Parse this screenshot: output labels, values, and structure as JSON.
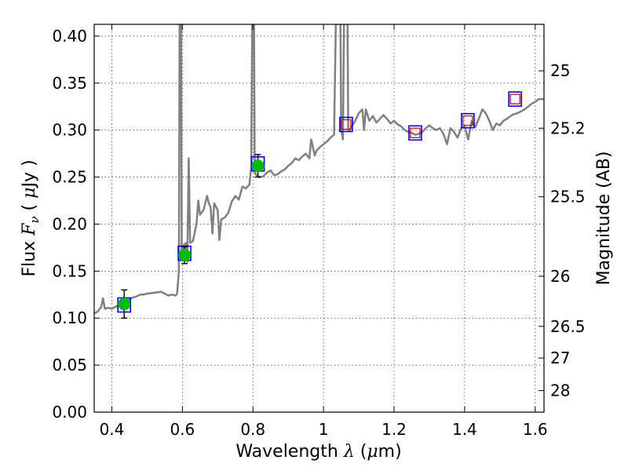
{
  "chart_data": {
    "type": "line",
    "xlabel": "Wavelength  λ (μm)",
    "ylabel_left": "Flux  F_ν  ( μJy )",
    "ylabel_left_parts": {
      "pre": "Flux  ",
      "sym": "F",
      "sub": "ν",
      "mid": "  ( ",
      "mu": "μ",
      "post": "Jy )"
    },
    "xlabel_parts": {
      "pre": "Wavelength  ",
      "sym": "λ",
      "mid": " (",
      "mu": "μ",
      "post": "m)"
    },
    "ylabel_right": "Magnitude (AB)",
    "xlim": [
      0.35,
      1.625
    ],
    "ylim": [
      0.0,
      0.4125
    ],
    "x_ticks": [
      0.4,
      0.6,
      0.8,
      1.0,
      1.2,
      1.4,
      1.6
    ],
    "x_tick_labels": [
      "0.4",
      "0.6",
      "0.8",
      "1",
      "1.2",
      "1.4",
      "1.6"
    ],
    "y_ticks": [
      0.0,
      0.05,
      0.1,
      0.15,
      0.2,
      0.25,
      0.3,
      0.35,
      0.4
    ],
    "y_tick_labels": [
      "0.00",
      "0.05",
      "0.10",
      "0.15",
      "0.20",
      "0.25",
      "0.30",
      "0.35",
      "0.40"
    ],
    "right_ticks": [
      {
        "mag": 25,
        "label": "25"
      },
      {
        "mag": 25.2,
        "label": "25.2"
      },
      {
        "mag": 25.5,
        "label": "25.5"
      },
      {
        "mag": 26,
        "label": "26"
      },
      {
        "mag": 26.5,
        "label": "26.5"
      },
      {
        "mag": 27,
        "label": "27"
      },
      {
        "mag": 28,
        "label": "28"
      }
    ],
    "grid": true,
    "colors": {
      "spectrum": "#808080",
      "observed_fill": "#00bb00",
      "model_box": "#0000ff",
      "model_fill_red": "#cc0000",
      "errorbar": "#000000"
    },
    "spectrum": [
      [
        0.35,
        0.105
      ],
      [
        0.36,
        0.107
      ],
      [
        0.37,
        0.112
      ],
      [
        0.375,
        0.121
      ],
      [
        0.38,
        0.11
      ],
      [
        0.39,
        0.111
      ],
      [
        0.4,
        0.11
      ],
      [
        0.41,
        0.112
      ],
      [
        0.42,
        0.114
      ],
      [
        0.43,
        0.116
      ],
      [
        0.44,
        0.118
      ],
      [
        0.45,
        0.12
      ],
      [
        0.46,
        0.122
      ],
      [
        0.47,
        0.123
      ],
      [
        0.48,
        0.125
      ],
      [
        0.49,
        0.125
      ],
      [
        0.5,
        0.126
      ],
      [
        0.52,
        0.127
      ],
      [
        0.54,
        0.128
      ],
      [
        0.55,
        0.126
      ],
      [
        0.56,
        0.124
      ],
      [
        0.57,
        0.125
      ],
      [
        0.58,
        0.124
      ],
      [
        0.585,
        0.126
      ],
      [
        0.59,
        0.15
      ],
      [
        0.592,
        0.413
      ],
      [
        0.596,
        0.413
      ],
      [
        0.598,
        0.165
      ],
      [
        0.6,
        0.172
      ],
      [
        0.605,
        0.178
      ],
      [
        0.61,
        0.18
      ],
      [
        0.614,
        0.16
      ],
      [
        0.618,
        0.27
      ],
      [
        0.622,
        0.18
      ],
      [
        0.63,
        0.182
      ],
      [
        0.64,
        0.2
      ],
      [
        0.645,
        0.225
      ],
      [
        0.65,
        0.21
      ],
      [
        0.66,
        0.215
      ],
      [
        0.67,
        0.23
      ],
      [
        0.675,
        0.222
      ],
      [
        0.68,
        0.218
      ],
      [
        0.685,
        0.19
      ],
      [
        0.69,
        0.222
      ],
      [
        0.7,
        0.215
      ],
      [
        0.705,
        0.183
      ],
      [
        0.71,
        0.205
      ],
      [
        0.72,
        0.207
      ],
      [
        0.73,
        0.212
      ],
      [
        0.74,
        0.224
      ],
      [
        0.75,
        0.23
      ],
      [
        0.76,
        0.226
      ],
      [
        0.77,
        0.24
      ],
      [
        0.78,
        0.238
      ],
      [
        0.79,
        0.242
      ],
      [
        0.795,
        0.26
      ],
      [
        0.798,
        0.413
      ],
      [
        0.803,
        0.413
      ],
      [
        0.805,
        0.255
      ],
      [
        0.81,
        0.252
      ],
      [
        0.82,
        0.25
      ],
      [
        0.83,
        0.251
      ],
      [
        0.84,
        0.255
      ],
      [
        0.85,
        0.257
      ],
      [
        0.86,
        0.252
      ],
      [
        0.87,
        0.253
      ],
      [
        0.88,
        0.256
      ],
      [
        0.89,
        0.258
      ],
      [
        0.9,
        0.262
      ],
      [
        0.91,
        0.265
      ],
      [
        0.92,
        0.27
      ],
      [
        0.93,
        0.268
      ],
      [
        0.94,
        0.272
      ],
      [
        0.95,
        0.275
      ],
      [
        0.96,
        0.27
      ],
      [
        0.965,
        0.29
      ],
      [
        0.97,
        0.282
      ],
      [
        0.975,
        0.273
      ],
      [
        0.98,
        0.278
      ],
      [
        0.99,
        0.282
      ],
      [
        1.0,
        0.285
      ],
      [
        1.01,
        0.288
      ],
      [
        1.02,
        0.292
      ],
      [
        1.03,
        0.295
      ],
      [
        1.035,
        0.413
      ],
      [
        1.048,
        0.413
      ],
      [
        1.05,
        0.302
      ],
      [
        1.055,
        0.29
      ],
      [
        1.058,
        0.413
      ],
      [
        1.068,
        0.413
      ],
      [
        1.07,
        0.3
      ],
      [
        1.075,
        0.3
      ],
      [
        1.08,
        0.304
      ],
      [
        1.09,
        0.31
      ],
      [
        1.1,
        0.318
      ],
      [
        1.11,
        0.322
      ],
      [
        1.115,
        0.3
      ],
      [
        1.12,
        0.322
      ],
      [
        1.13,
        0.31
      ],
      [
        1.14,
        0.315
      ],
      [
        1.15,
        0.308
      ],
      [
        1.16,
        0.312
      ],
      [
        1.17,
        0.316
      ],
      [
        1.18,
        0.312
      ],
      [
        1.19,
        0.307
      ],
      [
        1.2,
        0.31
      ],
      [
        1.21,
        0.306
      ],
      [
        1.22,
        0.304
      ],
      [
        1.23,
        0.3
      ],
      [
        1.24,
        0.298
      ],
      [
        1.25,
        0.297
      ],
      [
        1.26,
        0.295
      ],
      [
        1.27,
        0.296
      ],
      [
        1.28,
        0.298
      ],
      [
        1.29,
        0.302
      ],
      [
        1.3,
        0.305
      ],
      [
        1.31,
        0.302
      ],
      [
        1.32,
        0.3
      ],
      [
        1.33,
        0.302
      ],
      [
        1.34,
        0.296
      ],
      [
        1.35,
        0.285
      ],
      [
        1.36,
        0.302
      ],
      [
        1.37,
        0.298
      ],
      [
        1.38,
        0.292
      ],
      [
        1.39,
        0.302
      ],
      [
        1.4,
        0.304
      ],
      [
        1.41,
        0.29
      ],
      [
        1.42,
        0.31
      ],
      [
        1.43,
        0.303
      ],
      [
        1.44,
        0.312
      ],
      [
        1.45,
        0.322
      ],
      [
        1.46,
        0.318
      ],
      [
        1.47,
        0.31
      ],
      [
        1.48,
        0.3
      ],
      [
        1.49,
        0.307
      ],
      [
        1.5,
        0.305
      ],
      [
        1.51,
        0.31
      ],
      [
        1.52,
        0.312
      ],
      [
        1.53,
        0.315
      ],
      [
        1.54,
        0.317
      ],
      [
        1.55,
        0.318
      ],
      [
        1.56,
        0.32
      ],
      [
        1.57,
        0.322
      ],
      [
        1.58,
        0.325
      ],
      [
        1.59,
        0.328
      ],
      [
        1.6,
        0.33
      ],
      [
        1.61,
        0.333
      ],
      [
        1.625,
        0.333
      ]
    ],
    "observed": [
      {
        "x": 0.435,
        "y": 0.115,
        "err": 0.015
      },
      {
        "x": 0.606,
        "y": 0.167,
        "err": 0.009
      },
      {
        "x": 0.814,
        "y": 0.262,
        "err": 0.012
      }
    ],
    "model_points": [
      {
        "x": 0.435,
        "y": 0.114,
        "red": false
      },
      {
        "x": 0.606,
        "y": 0.169,
        "red": false
      },
      {
        "x": 0.814,
        "y": 0.264,
        "red": false
      },
      {
        "x": 1.064,
        "y": 0.306,
        "red": true
      },
      {
        "x": 1.26,
        "y": 0.297,
        "red": true
      },
      {
        "x": 1.409,
        "y": 0.31,
        "red": true
      },
      {
        "x": 1.543,
        "y": 0.333,
        "red": true
      }
    ]
  }
}
